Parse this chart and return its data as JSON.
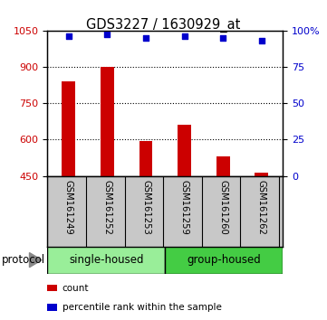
{
  "title": "GDS3227 / 1630929_at",
  "samples": [
    "GSM161249",
    "GSM161252",
    "GSM161253",
    "GSM161259",
    "GSM161260",
    "GSM161262"
  ],
  "bar_values": [
    840,
    900,
    595,
    660,
    530,
    462
  ],
  "percentile_values": [
    96,
    97,
    95,
    96,
    95,
    93
  ],
  "bar_color": "#cc0000",
  "dot_color": "#0000cc",
  "ylim_left": [
    450,
    1050
  ],
  "ylim_right": [
    0,
    100
  ],
  "yticks_left": [
    450,
    600,
    750,
    900,
    1050
  ],
  "ytick_labels_left": [
    "450",
    "600",
    "750",
    "900",
    "1050"
  ],
  "yticks_right": [
    0,
    25,
    50,
    75,
    100
  ],
  "ytick_labels_right": [
    "0",
    "25",
    "50",
    "75",
    "100%"
  ],
  "gridlines": [
    600,
    750,
    900
  ],
  "groups": [
    {
      "label": "single-housed",
      "indices": [
        0,
        1,
        2
      ],
      "color": "#99ee99"
    },
    {
      "label": "group-housed",
      "indices": [
        3,
        4,
        5
      ],
      "color": "#44cc44"
    }
  ],
  "protocol_label": "protocol",
  "legend_items": [
    {
      "color": "#cc0000",
      "label": "count"
    },
    {
      "color": "#0000cc",
      "label": "percentile rank within the sample"
    }
  ],
  "bar_width": 0.35,
  "background_color": "#ffffff",
  "xlabel_bg": "#c8c8c8"
}
